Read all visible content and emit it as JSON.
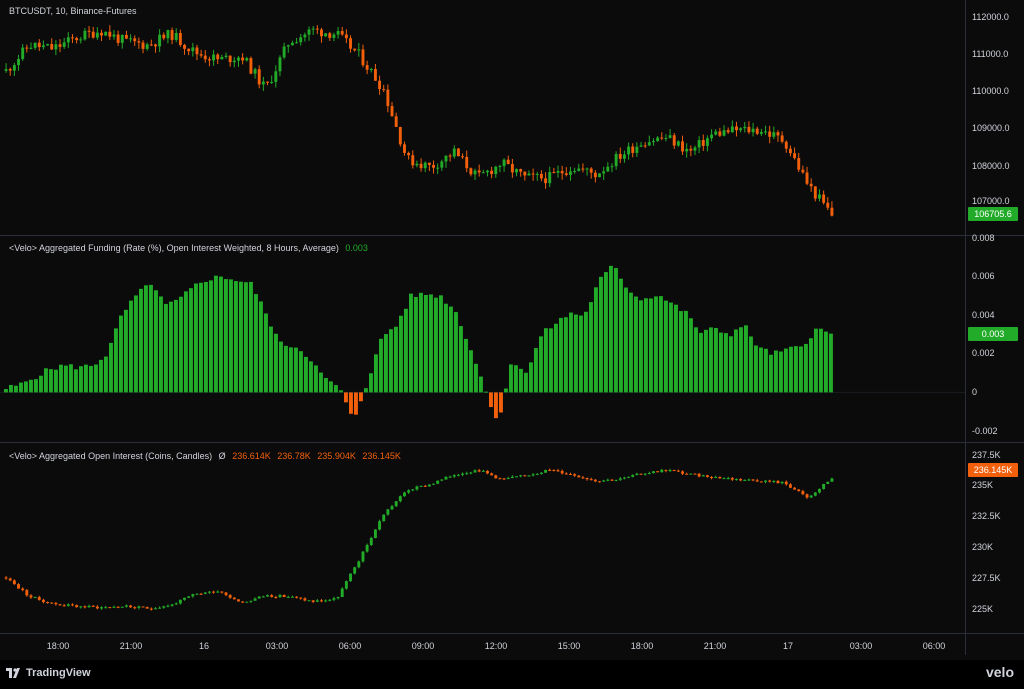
{
  "colors": {
    "up": "#22ab28",
    "down": "#f2600c",
    "bg": "#0b0b0b",
    "text": "#d1d4dc",
    "grid": "#2a2e39"
  },
  "price_pane": {
    "legend": "BTCUSDT, 10, Binance-Futures",
    "ticks": [
      "112000.0",
      "111000.0",
      "110000.0",
      "109000.0",
      "108000.0",
      "107000.0"
    ],
    "last_price": "106705.6"
  },
  "funding_pane": {
    "legend": "<Velo> Aggregated Funding (Rate (%), Open Interest Weighted, 8 Hours, Average)",
    "legend_value": "0.003",
    "ticks": [
      "0.008",
      "0.006",
      "0.004",
      "0.002",
      "0",
      "-0.002"
    ],
    "last_value": "0.003"
  },
  "oi_pane": {
    "legend": "<Velo> Aggregated Open Interest (Coins, Candles)",
    "legend_symbol": "Ø",
    "ohlc": [
      "236.614K",
      "236.78K",
      "235.904K",
      "236.145K"
    ],
    "ticks": [
      "237.5K",
      "235K",
      "232.5K",
      "230K",
      "227.5K",
      "225K"
    ],
    "last_value": "236.145K"
  },
  "time_axis": [
    "18:00",
    "21:00",
    "16",
    "03:00",
    "06:00",
    "09:00",
    "12:00",
    "15:00",
    "18:00",
    "21:00",
    "17",
    "03:00",
    "06:00"
  ],
  "footer": {
    "brand": "TradingView",
    "velo": "velo"
  },
  "chart_data": [
    {
      "type": "candlestick",
      "title": "BTCUSDT, 10, Binance-Futures",
      "ylim": [
        106400,
        112300
      ],
      "x": [
        "18:00",
        "21:00",
        "16",
        "03:00",
        "06:00",
        "09:00",
        "12:00",
        "15:00",
        "18:00",
        "21:00",
        "17"
      ],
      "closes": [
        110600,
        111300,
        111200,
        111500,
        111700,
        111400,
        111300,
        111600,
        111100,
        110900,
        111000,
        110100,
        111400,
        111700,
        111600,
        111000,
        110100,
        108200,
        108000,
        108400,
        107700,
        108100,
        107700,
        107700,
        108000,
        107800,
        108300,
        108700,
        108800,
        108400,
        108900,
        109000,
        109000,
        108700,
        107500,
        106700
      ],
      "last": 106705.6
    },
    {
      "type": "bar",
      "title": "<Velo> Aggregated Funding (Rate (%), Open Interest Weighted, 8 Hours, Average)",
      "ylim": [
        -0.002,
        0.008
      ],
      "values": [
        0.0002,
        0.0004,
        0.0008,
        0.0012,
        0.0014,
        0.0013,
        0.0014,
        0.002,
        0.004,
        0.005,
        0.0057,
        0.0045,
        0.0048,
        0.0055,
        0.0059,
        0.006,
        0.0058,
        0.0056,
        0.004,
        0.0025,
        0.0024,
        0.0018,
        0.0007,
        0.0003,
        -0.0015,
        0.0006,
        0.0029,
        0.0035,
        0.005,
        0.0051,
        0.005,
        0.0043,
        0.0025,
        0.0004,
        -0.0016,
        0.0017,
        0.001,
        0.003,
        0.0036,
        0.0041,
        0.004,
        0.0058,
        0.0066,
        0.0053,
        0.0048,
        0.0051,
        0.0046,
        0.0041,
        0.0031,
        0.0033,
        0.003,
        0.0035,
        0.0023,
        0.002,
        0.0022,
        0.0024,
        0.0033,
        0.003
      ]
    },
    {
      "type": "candlestick",
      "title": "<Velo> Aggregated Open Interest (Coins, Candles)",
      "ylim": [
        224000,
        238200
      ],
      "closes": [
        227800,
        226200,
        225600,
        225400,
        225300,
        225400,
        225200,
        225500,
        226400,
        226700,
        225700,
        226300,
        226200,
        225800,
        226000,
        229400,
        233100,
        235100,
        235600,
        236400,
        236800,
        236000,
        236300,
        236800,
        236400,
        235900,
        236000,
        236500,
        236800,
        236400,
        236200,
        236000,
        235900,
        235700,
        234400,
        236145
      ],
      "last": "236.145K"
    }
  ]
}
